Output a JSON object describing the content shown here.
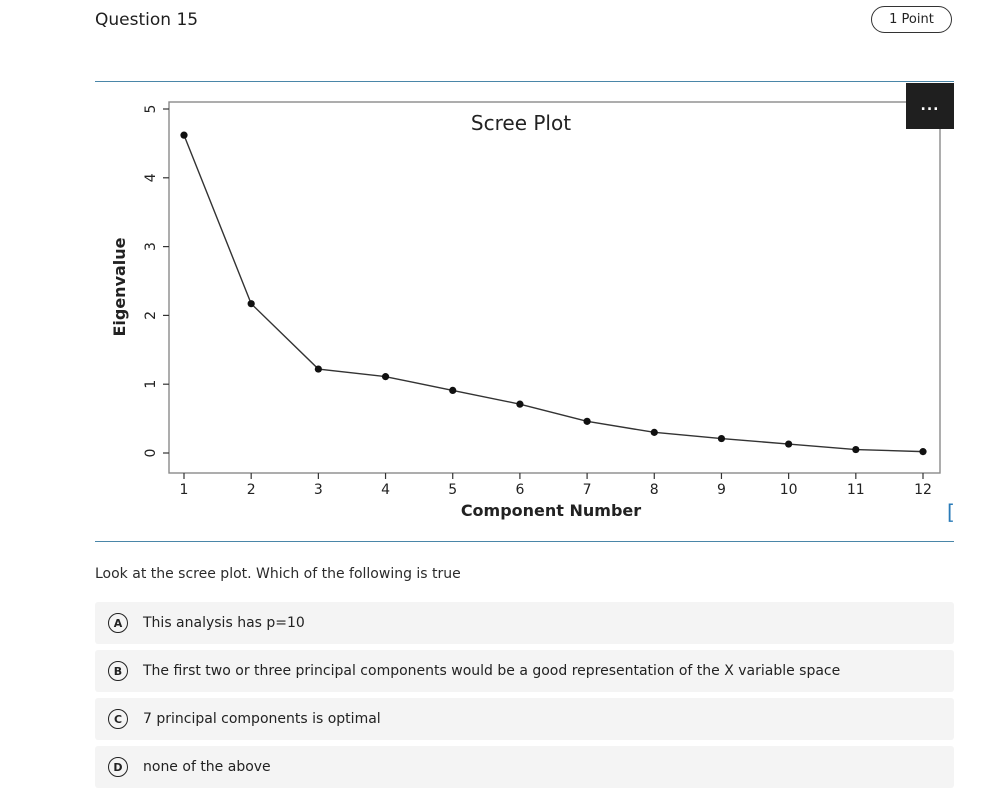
{
  "question": {
    "title": "Question 15",
    "points": "1 Point"
  },
  "more_button": {
    "label": "..."
  },
  "prompt": "Look at the scree plot. Which of the following is true",
  "options": [
    {
      "letter": "A",
      "text": "This analysis has p=10"
    },
    {
      "letter": "B",
      "text": "The first two or three principal components would be a good representation of the X variable space"
    },
    {
      "letter": "C",
      "text": "7 principal components is optimal"
    },
    {
      "letter": "D",
      "text": "none of the above"
    }
  ],
  "edge_glyph": "[",
  "chart_data": {
    "type": "line",
    "title": "Scree Plot",
    "xlabel": "Component Number",
    "ylabel": "Eigenvalue",
    "x": [
      1,
      2,
      3,
      4,
      5,
      6,
      7,
      8,
      9,
      10,
      11,
      12
    ],
    "x_ticks": [
      "1",
      "2",
      "3",
      "4",
      "5",
      "6",
      "7",
      "8",
      "9",
      "10",
      "11",
      "12"
    ],
    "y_ticks": [
      "0",
      "1",
      "2",
      "3",
      "4",
      "5"
    ],
    "series": [
      {
        "values": [
          4.62,
          2.17,
          1.22,
          1.11,
          0.91,
          0.71,
          0.46,
          0.3,
          0.21,
          0.13,
          0.05,
          0.02
        ]
      }
    ],
    "xlim": [
      1,
      12
    ],
    "ylim": [
      0,
      5
    ],
    "grid": false,
    "colors": {
      "line": "#333333",
      "marker": "#111111"
    }
  }
}
